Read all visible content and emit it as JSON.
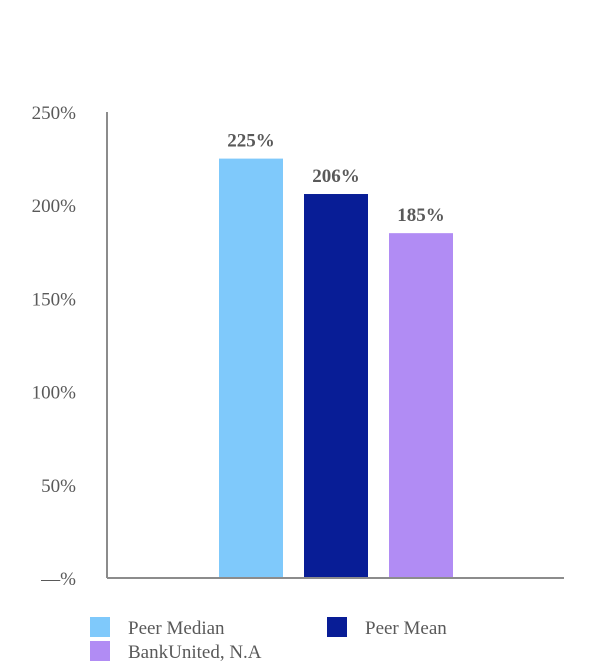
{
  "chart_data": {
    "type": "bar",
    "title": "",
    "xlabel": "",
    "ylabel": "",
    "ylim": [
      0,
      250
    ],
    "yticks": [
      {
        "value": 0,
        "label": "—%"
      },
      {
        "value": 50,
        "label": "50%"
      },
      {
        "value": 100,
        "label": "100%"
      },
      {
        "value": 150,
        "label": "150%"
      },
      {
        "value": 200,
        "label": "200%"
      },
      {
        "value": 250,
        "label": "250%"
      }
    ],
    "grid": false,
    "legend_position": "bottom",
    "series": [
      {
        "name": "Peer Median",
        "value": 225,
        "label": "225%",
        "color": "#7fc9fb"
      },
      {
        "name": "Peer Mean",
        "value": 206,
        "label": "206%",
        "color": "#081d96"
      },
      {
        "name": "BankUnited, N.A",
        "value": 185,
        "label": "185%",
        "color": "#b18cf4"
      }
    ]
  }
}
